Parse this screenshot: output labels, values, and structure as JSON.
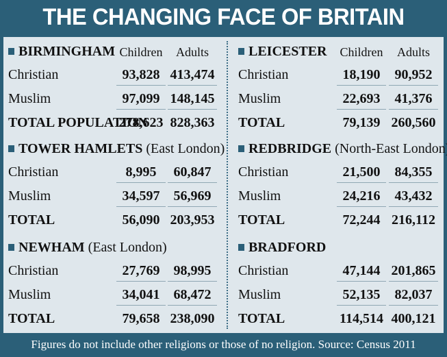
{
  "title": "THE CHANGING FACE OF BRITAIN",
  "footer": "Figures do not include other religions or those of no religion. Source: Census 2011",
  "colors": {
    "background": "#2b5f78",
    "panel": "#dfe7ec",
    "accent": "#2b5f78"
  },
  "chart_data": {
    "type": "table",
    "title": "THE CHANGING FACE OF BRITAIN",
    "columns": [
      "Children",
      "Adults"
    ],
    "sections": [
      {
        "name": "BIRMINGHAM",
        "sub": "",
        "show_cols": true,
        "rows": [
          {
            "label": "Christian",
            "children": "93,828",
            "adults": "413,474"
          },
          {
            "label": "Muslim",
            "children": "97,099",
            "adults": "148,145"
          },
          {
            "label": "TOTAL POPULATION",
            "children": "278,623",
            "adults": "828,363"
          }
        ]
      },
      {
        "name": "LEICESTER",
        "sub": "",
        "show_cols": true,
        "rows": [
          {
            "label": "Christian",
            "children": "18,190",
            "adults": "90,952"
          },
          {
            "label": "Muslim",
            "children": "22,693",
            "adults": "41,376"
          },
          {
            "label": "TOTAL",
            "children": "79,139",
            "adults": "260,560"
          }
        ]
      },
      {
        "name": "TOWER HAMLETS",
        "sub": "(East London)",
        "show_cols": false,
        "rows": [
          {
            "label": "Christian",
            "children": "8,995",
            "adults": "60,847"
          },
          {
            "label": "Muslim",
            "children": "34,597",
            "adults": "56,969"
          },
          {
            "label": "TOTAL",
            "children": "56,090",
            "adults": "203,953"
          }
        ]
      },
      {
        "name": "REDBRIDGE",
        "sub": "(North-East London)",
        "show_cols": false,
        "rows": [
          {
            "label": "Christian",
            "children": "21,500",
            "adults": "84,355"
          },
          {
            "label": "Muslim",
            "children": "24,216",
            "adults": "43,432"
          },
          {
            "label": "TOTAL",
            "children": "72,244",
            "adults": "216,112"
          }
        ]
      },
      {
        "name": "NEWHAM",
        "sub": "(East London)",
        "show_cols": false,
        "rows": [
          {
            "label": "Christian",
            "children": "27,769",
            "adults": "98,995"
          },
          {
            "label": "Muslim",
            "children": "34,041",
            "adults": "68,472"
          },
          {
            "label": "TOTAL",
            "children": "79,658",
            "adults": "238,090"
          }
        ]
      },
      {
        "name": "BRADFORD",
        "sub": "",
        "show_cols": false,
        "rows": [
          {
            "label": "Christian",
            "children": "47,144",
            "adults": "201,865"
          },
          {
            "label": "Muslim",
            "children": "52,135",
            "adults": "82,037"
          },
          {
            "label": "TOTAL",
            "children": "114,514",
            "adults": "400,121"
          }
        ]
      }
    ]
  }
}
